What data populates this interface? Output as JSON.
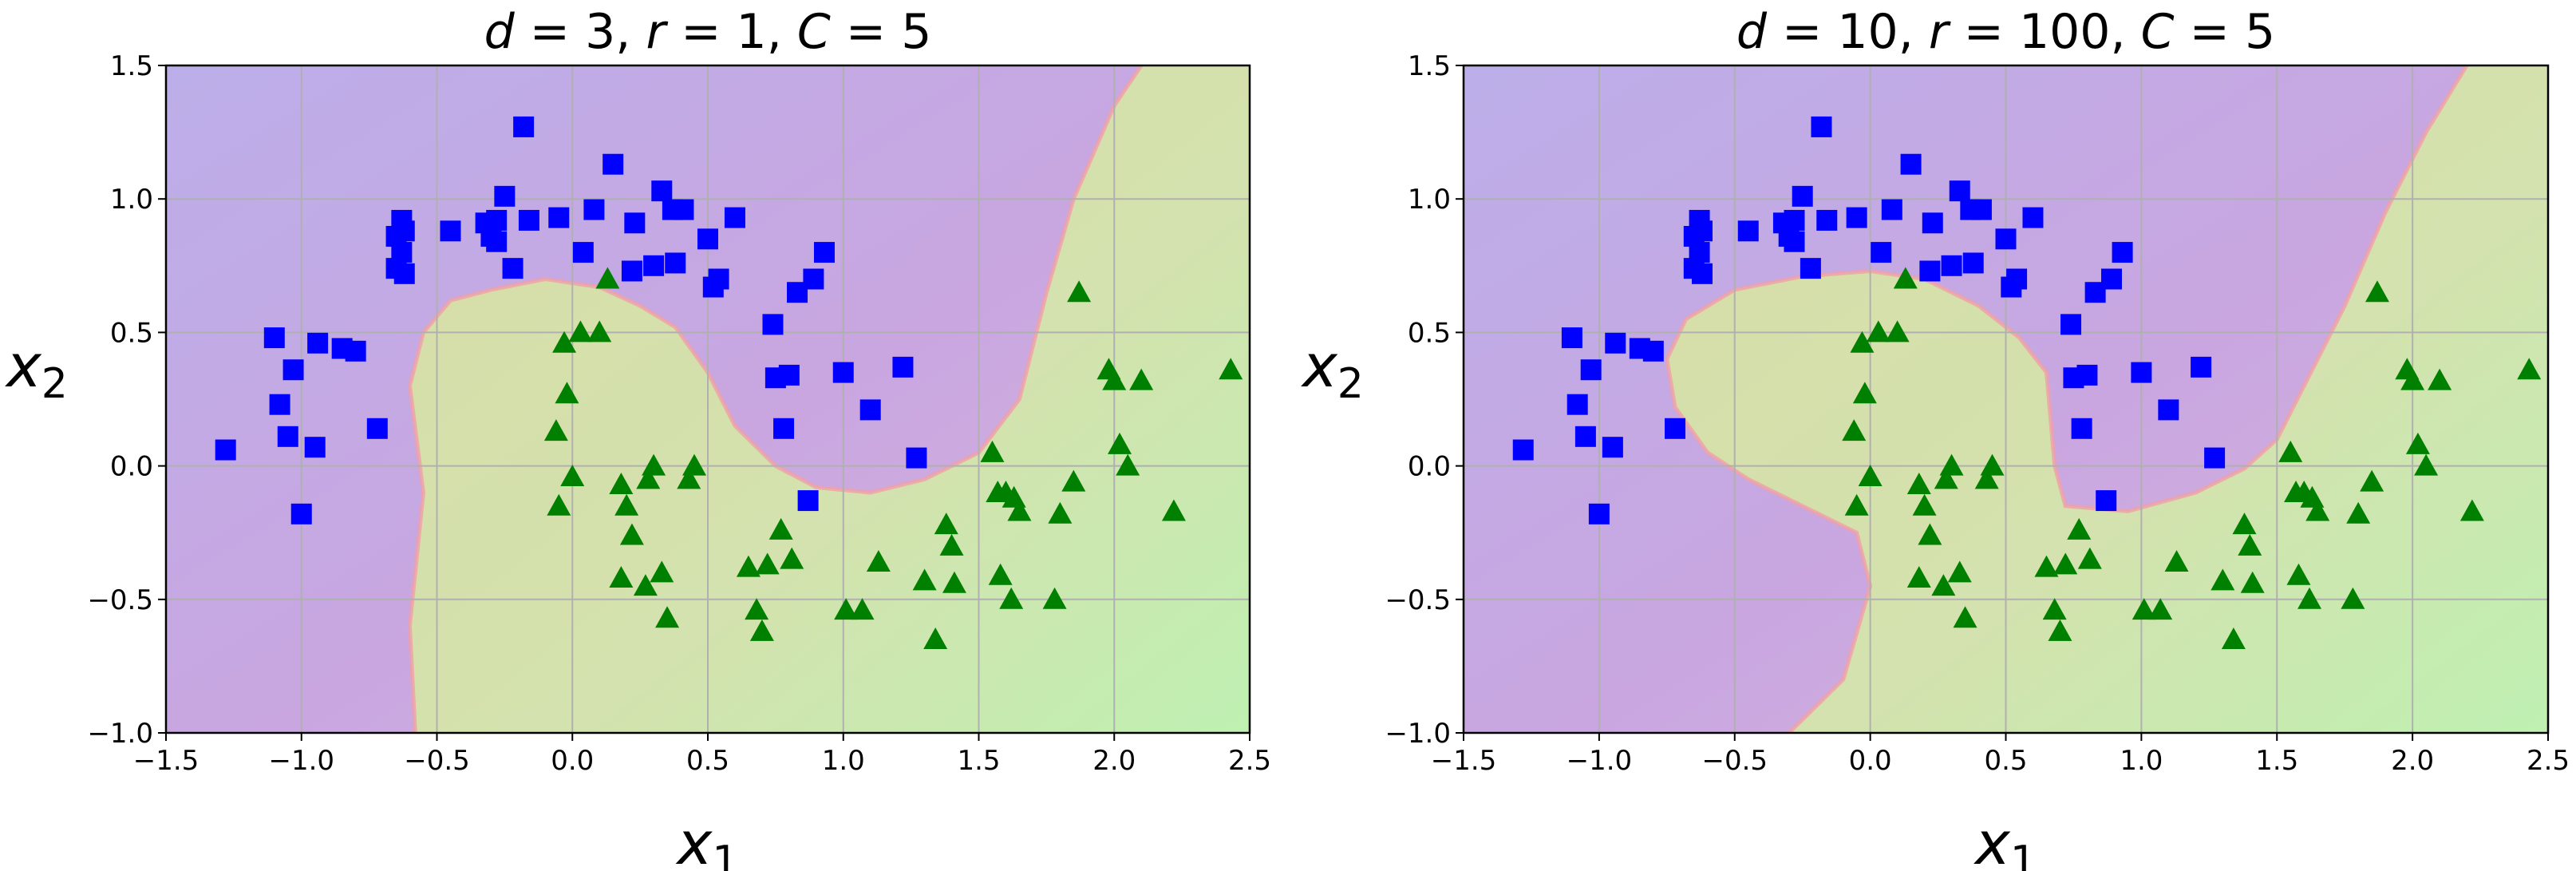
{
  "chart_data": [
    {
      "type": "scatter",
      "title": "d = 3, r = 1, C = 5",
      "title_parts": {
        "d": "3",
        "r": "1",
        "C": "5"
      },
      "xlabel": "x1",
      "ylabel": "x2",
      "xlim": [
        -1.5,
        2.5
      ],
      "ylim": [
        -1.0,
        1.5
      ],
      "xticks": [
        "−1.5",
        "−1.0",
        "−0.5",
        "0.0",
        "0.5",
        "1.0",
        "1.5",
        "2.0",
        "2.5"
      ],
      "yticks": [
        "−1.0",
        "−0.5",
        "0.0",
        "0.5",
        "1.0",
        "1.5"
      ],
      "grid": true,
      "background": "decision regions (purple = class 0, green = class 1)",
      "boundary": [
        [
          -0.58,
          -1.0
        ],
        [
          -0.6,
          -0.6
        ],
        [
          -0.55,
          -0.1
        ],
        [
          -0.6,
          0.3
        ],
        [
          -0.55,
          0.5
        ],
        [
          -0.45,
          0.62
        ],
        [
          -0.3,
          0.66
        ],
        [
          -0.1,
          0.7
        ],
        [
          0.1,
          0.67
        ],
        [
          0.25,
          0.6
        ],
        [
          0.38,
          0.52
        ],
        [
          0.5,
          0.35
        ],
        [
          0.6,
          0.15
        ],
        [
          0.75,
          0.0
        ],
        [
          0.9,
          -0.08
        ],
        [
          1.1,
          -0.1
        ],
        [
          1.3,
          -0.05
        ],
        [
          1.5,
          0.05
        ],
        [
          1.65,
          0.25
        ],
        [
          1.75,
          0.65
        ],
        [
          1.85,
          1.0
        ],
        [
          2.0,
          1.35
        ],
        [
          2.1,
          1.5
        ]
      ],
      "series": [
        {
          "name": "",
          "marker": "square",
          "color": "#0000ff",
          "x": [
            -1.28,
            -1.1,
            -1.08,
            -1.05,
            -1.03,
            -1.0,
            -0.95,
            -0.94,
            -0.85,
            -0.8,
            -0.72,
            -0.65,
            -0.65,
            -0.63,
            -0.63,
            -0.62,
            -0.62,
            -0.45,
            -0.32,
            -0.3,
            -0.28,
            -0.28,
            -0.25,
            -0.22,
            -0.18,
            -0.16,
            -0.05,
            0.04,
            0.08,
            0.15,
            0.22,
            0.23,
            0.33,
            0.3,
            0.37,
            0.38,
            0.41,
            0.5,
            0.52,
            0.54,
            0.6,
            0.74,
            0.75,
            0.78,
            0.8,
            0.83,
            0.87,
            0.89,
            0.93,
            1.0,
            1.1,
            1.22,
            1.27
          ],
          "y": [
            0.06,
            0.48,
            0.23,
            0.11,
            0.36,
            -0.18,
            0.07,
            0.46,
            0.44,
            0.43,
            0.14,
            0.86,
            0.74,
            0.92,
            0.8,
            0.72,
            0.88,
            0.88,
            0.91,
            0.86,
            0.84,
            0.92,
            1.01,
            0.74,
            1.27,
            0.92,
            0.93,
            0.8,
            0.96,
            1.13,
            0.73,
            0.91,
            1.03,
            0.75,
            0.96,
            0.76,
            0.96,
            0.85,
            0.67,
            0.7,
            0.93,
            0.53,
            0.33,
            0.14,
            0.34,
            0.65,
            -0.13,
            0.7,
            0.8,
            0.35,
            0.21,
            0.37,
            0.03
          ]
        },
        {
          "name": "",
          "marker": "triangle",
          "color": "#008000",
          "x": [
            -0.06,
            -0.05,
            -0.03,
            -0.02,
            0.0,
            0.03,
            0.1,
            0.13,
            0.18,
            0.18,
            0.2,
            0.22,
            0.27,
            0.28,
            0.3,
            0.33,
            0.35,
            0.43,
            0.45,
            0.65,
            0.68,
            0.7,
            0.72,
            0.77,
            0.81,
            1.01,
            1.07,
            1.13,
            1.3,
            1.34,
            1.38,
            1.4,
            1.41,
            1.55,
            1.57,
            1.58,
            1.6,
            1.62,
            1.63,
            1.65,
            1.78,
            1.8,
            1.85,
            1.87,
            1.98,
            2.0,
            2.02,
            2.05,
            2.1,
            2.22,
            2.43
          ],
          "y": [
            0.13,
            -0.15,
            0.46,
            0.27,
            -0.04,
            0.5,
            0.5,
            0.7,
            -0.07,
            -0.42,
            -0.15,
            -0.26,
            -0.45,
            -0.05,
            0.0,
            -0.4,
            -0.57,
            -0.05,
            0.0,
            -0.38,
            -0.54,
            -0.62,
            -0.37,
            -0.24,
            -0.35,
            -0.54,
            -0.54,
            -0.36,
            -0.43,
            -0.65,
            -0.22,
            -0.3,
            -0.44,
            0.05,
            -0.1,
            -0.41,
            -0.1,
            -0.5,
            -0.12,
            -0.17,
            -0.5,
            -0.18,
            -0.06,
            0.65,
            0.36,
            0.32,
            0.08,
            0.0,
            0.32,
            -0.17,
            0.36
          ]
        }
      ]
    },
    {
      "type": "scatter",
      "title": "d = 10, r = 100, C = 5",
      "title_parts": {
        "d": "10",
        "r": "100",
        "C": "5"
      },
      "xlabel": "x1",
      "ylabel": "x2",
      "xlim": [
        -1.5,
        2.5
      ],
      "ylim": [
        -1.0,
        1.5
      ],
      "xticks": [
        "−1.5",
        "−1.0",
        "−0.5",
        "0.0",
        "0.5",
        "1.0",
        "1.5",
        "2.0",
        "2.5"
      ],
      "yticks": [
        "−1.0",
        "−0.5",
        "0.0",
        "0.5",
        "1.0",
        "1.5"
      ],
      "grid": true,
      "background": "decision regions (purple = class 0, green = class 1)",
      "boundary": [
        [
          -0.3,
          -1.0
        ],
        [
          -0.1,
          -0.8
        ],
        [
          0.0,
          -0.45
        ],
        [
          -0.05,
          -0.25
        ],
        [
          -0.25,
          -0.15
        ],
        [
          -0.45,
          -0.05
        ],
        [
          -0.6,
          0.05
        ],
        [
          -0.72,
          0.22
        ],
        [
          -0.75,
          0.4
        ],
        [
          -0.68,
          0.55
        ],
        [
          -0.5,
          0.66
        ],
        [
          -0.25,
          0.71
        ],
        [
          0.0,
          0.73
        ],
        [
          0.2,
          0.7
        ],
        [
          0.4,
          0.6
        ],
        [
          0.55,
          0.48
        ],
        [
          0.65,
          0.35
        ],
        [
          0.68,
          0.0
        ],
        [
          0.72,
          -0.15
        ],
        [
          0.95,
          -0.17
        ],
        [
          1.2,
          -0.1
        ],
        [
          1.38,
          -0.01
        ],
        [
          1.5,
          0.1
        ],
        [
          1.6,
          0.3
        ],
        [
          1.75,
          0.6
        ],
        [
          1.9,
          0.95
        ],
        [
          2.05,
          1.25
        ],
        [
          2.2,
          1.5
        ]
      ],
      "series": [
        {
          "name": "",
          "marker": "square",
          "color": "#0000ff",
          "x": [
            -1.28,
            -1.1,
            -1.08,
            -1.05,
            -1.03,
            -1.0,
            -0.95,
            -0.94,
            -0.85,
            -0.8,
            -0.72,
            -0.65,
            -0.65,
            -0.63,
            -0.63,
            -0.62,
            -0.62,
            -0.45,
            -0.32,
            -0.3,
            -0.28,
            -0.28,
            -0.25,
            -0.22,
            -0.18,
            -0.16,
            -0.05,
            0.04,
            0.08,
            0.15,
            0.22,
            0.23,
            0.33,
            0.3,
            0.37,
            0.38,
            0.41,
            0.5,
            0.52,
            0.54,
            0.6,
            0.74,
            0.75,
            0.78,
            0.8,
            0.83,
            0.87,
            0.89,
            0.93,
            1.0,
            1.1,
            1.22,
            1.27
          ],
          "y": [
            0.06,
            0.48,
            0.23,
            0.11,
            0.36,
            -0.18,
            0.07,
            0.46,
            0.44,
            0.43,
            0.14,
            0.86,
            0.74,
            0.92,
            0.8,
            0.72,
            0.88,
            0.88,
            0.91,
            0.86,
            0.84,
            0.92,
            1.01,
            0.74,
            1.27,
            0.92,
            0.93,
            0.8,
            0.96,
            1.13,
            0.73,
            0.91,
            1.03,
            0.75,
            0.96,
            0.76,
            0.96,
            0.85,
            0.67,
            0.7,
            0.93,
            0.53,
            0.33,
            0.14,
            0.34,
            0.65,
            -0.13,
            0.7,
            0.8,
            0.35,
            0.21,
            0.37,
            0.03
          ]
        },
        {
          "name": "",
          "marker": "triangle",
          "color": "#008000",
          "x": [
            -0.06,
            -0.05,
            -0.03,
            -0.02,
            0.0,
            0.03,
            0.1,
            0.13,
            0.18,
            0.18,
            0.2,
            0.22,
            0.27,
            0.28,
            0.3,
            0.33,
            0.35,
            0.43,
            0.45,
            0.65,
            0.68,
            0.7,
            0.72,
            0.77,
            0.81,
            1.01,
            1.07,
            1.13,
            1.3,
            1.34,
            1.38,
            1.4,
            1.41,
            1.55,
            1.57,
            1.58,
            1.6,
            1.62,
            1.63,
            1.65,
            1.78,
            1.8,
            1.85,
            1.87,
            1.98,
            2.0,
            2.02,
            2.05,
            2.1,
            2.22,
            2.43
          ],
          "y": [
            0.13,
            -0.15,
            0.46,
            0.27,
            -0.04,
            0.5,
            0.5,
            0.7,
            -0.07,
            -0.42,
            -0.15,
            -0.26,
            -0.45,
            -0.05,
            0.0,
            -0.4,
            -0.57,
            -0.05,
            0.0,
            -0.38,
            -0.54,
            -0.62,
            -0.37,
            -0.24,
            -0.35,
            -0.54,
            -0.54,
            -0.36,
            -0.43,
            -0.65,
            -0.22,
            -0.3,
            -0.44,
            0.05,
            -0.1,
            -0.41,
            -0.1,
            -0.5,
            -0.12,
            -0.17,
            -0.5,
            -0.18,
            -0.06,
            0.65,
            0.36,
            0.32,
            0.08,
            0.0,
            0.32,
            -0.17,
            0.36
          ]
        }
      ]
    }
  ],
  "colors": {
    "class0_region": "#c9a6e0",
    "class1_region": "#d3e2ae",
    "boundary": "#f0a0a8",
    "square_marker": "#0000ff",
    "triangle_marker": "#008000",
    "grid": "#b0b0b0"
  }
}
